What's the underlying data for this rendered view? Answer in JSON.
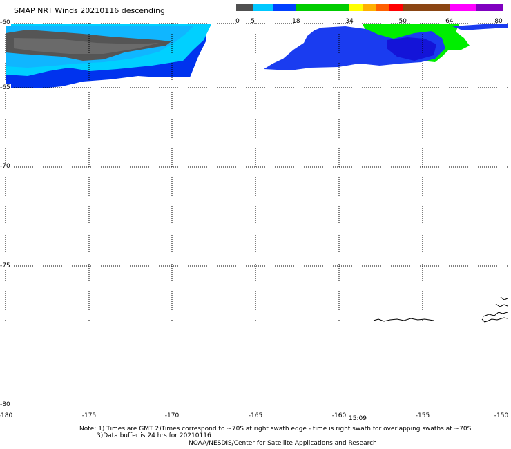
{
  "title": "SMAP NRT Winds  20210116 descending",
  "colorbar": {
    "labels": [
      "0",
      "5",
      "18",
      "34",
      "50",
      "64",
      "80"
    ],
    "segments": [
      {
        "from": 0,
        "to": 5,
        "color": "#505050"
      },
      {
        "from": 5,
        "to": 11,
        "color": "#00c8ff"
      },
      {
        "from": 11,
        "to": 18,
        "color": "#0040ff"
      },
      {
        "from": 18,
        "to": 34,
        "color": "#00cc00"
      },
      {
        "from": 34,
        "to": 38,
        "color": "#ffff00"
      },
      {
        "from": 38,
        "to": 42,
        "color": "#ffb000"
      },
      {
        "from": 42,
        "to": 46,
        "color": "#ff6000"
      },
      {
        "from": 46,
        "to": 50,
        "color": "#ff0000"
      },
      {
        "from": 50,
        "to": 64,
        "color": "#8b4513"
      },
      {
        "from": 64,
        "to": 72,
        "color": "#ff00ff"
      },
      {
        "from": 72,
        "to": 80,
        "color": "#8000c0"
      }
    ]
  },
  "latitude_labels": [
    "-60",
    "-65",
    "-70",
    "-75",
    "-80"
  ],
  "longitude_labels": [
    "-180",
    "-175",
    "-170",
    "-165",
    "-160",
    "-155",
    "-150"
  ],
  "time_label": "15:09",
  "note": {
    "line1": "Note: 1) Times are GMT 2)Times correspond to ~70S at right swath edge - time is right swath for overlapping swaths at ~70S",
    "line2": "3)Data buffer is 24 hrs for 20210116",
    "line3": "NOAA/NESDIS/Center for Satellite Applications and Research"
  },
  "legend_colors": {
    "grid": "#000000",
    "coast": "#000000"
  }
}
